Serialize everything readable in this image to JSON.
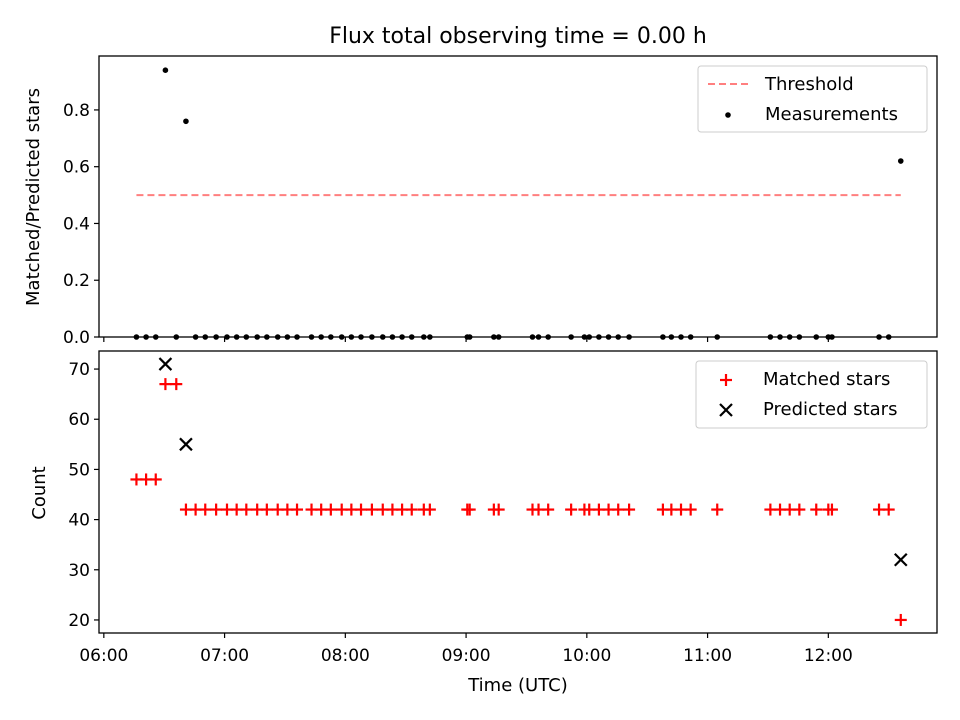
{
  "chart_data": [
    {
      "type": "scatter",
      "title": "Flux total observing time = 0.00 h",
      "xlabel": "",
      "ylabel": "Matched/Predicted stars",
      "xlim": [
        5.96,
        12.9
      ],
      "ylim": [
        0.0,
        0.99
      ],
      "yticks": [
        0.0,
        0.2,
        0.4,
        0.6,
        0.8
      ],
      "ytick_labels": [
        "0.0",
        "0.2",
        "0.4",
        "0.6",
        "0.8"
      ],
      "legend_position": "top-right",
      "threshold": {
        "name": "Threshold",
        "color": "#ff7f7f",
        "style": "dashed",
        "x": [
          6.27,
          12.6
        ],
        "y": 0.5
      },
      "measurements": {
        "name": "Measurements",
        "color": "#000000",
        "marker": "dot",
        "points": [
          [
            6.27,
            0.0
          ],
          [
            6.35,
            0.0
          ],
          [
            6.43,
            0.0
          ],
          [
            6.51,
            0.94
          ],
          [
            6.6,
            0.0
          ],
          [
            6.68,
            0.76
          ],
          [
            6.76,
            0.0
          ],
          [
            6.84,
            0.0
          ],
          [
            6.93,
            0.0
          ],
          [
            7.02,
            0.0
          ],
          [
            7.1,
            0.0
          ],
          [
            7.18,
            0.0
          ],
          [
            7.27,
            0.0
          ],
          [
            7.35,
            0.0
          ],
          [
            7.44,
            0.0
          ],
          [
            7.52,
            0.0
          ],
          [
            7.6,
            0.0
          ],
          [
            7.72,
            0.0
          ],
          [
            7.8,
            0.0
          ],
          [
            7.88,
            0.0
          ],
          [
            7.97,
            0.0
          ],
          [
            8.05,
            0.0
          ],
          [
            8.13,
            0.0
          ],
          [
            8.22,
            0.0
          ],
          [
            8.31,
            0.0
          ],
          [
            8.39,
            0.0
          ],
          [
            8.47,
            0.0
          ],
          [
            8.55,
            0.0
          ],
          [
            8.65,
            0.0
          ],
          [
            8.7,
            0.0
          ],
          [
            9.01,
            0.0
          ],
          [
            9.03,
            0.0
          ],
          [
            9.23,
            0.0
          ],
          [
            9.27,
            0.0
          ],
          [
            9.55,
            0.0
          ],
          [
            9.6,
            0.0
          ],
          [
            9.68,
            0.0
          ],
          [
            9.87,
            0.0
          ],
          [
            9.98,
            0.0
          ],
          [
            10.02,
            0.0
          ],
          [
            10.1,
            0.0
          ],
          [
            10.18,
            0.0
          ],
          [
            10.26,
            0.0
          ],
          [
            10.35,
            0.0
          ],
          [
            10.63,
            0.0
          ],
          [
            10.7,
            0.0
          ],
          [
            10.78,
            0.0
          ],
          [
            10.86,
            0.0
          ],
          [
            11.08,
            0.0
          ],
          [
            11.52,
            0.0
          ],
          [
            11.6,
            0.0
          ],
          [
            11.68,
            0.0
          ],
          [
            11.76,
            0.0
          ],
          [
            11.9,
            0.0
          ],
          [
            12.0,
            0.0
          ],
          [
            12.03,
            0.0
          ],
          [
            12.42,
            0.0
          ],
          [
            12.5,
            0.0
          ],
          [
            12.6,
            0.62
          ]
        ]
      }
    },
    {
      "type": "scatter",
      "title": "",
      "xlabel": "Time (UTC)",
      "ylabel": "Count",
      "xlim": [
        5.96,
        12.9
      ],
      "ylim": [
        17.4,
        73.6
      ],
      "yticks": [
        20,
        30,
        40,
        50,
        60,
        70
      ],
      "ytick_labels": [
        "20",
        "30",
        "40",
        "50",
        "60",
        "70"
      ],
      "xticks": [
        6,
        7,
        8,
        9,
        10,
        11,
        12
      ],
      "xtick_labels": [
        "06:00",
        "07:00",
        "08:00",
        "09:00",
        "10:00",
        "11:00",
        "12:00"
      ],
      "legend_position": "top-right",
      "matched": {
        "name": "Matched stars",
        "color": "#ff0000",
        "marker": "plus",
        "points": [
          [
            6.27,
            48
          ],
          [
            6.35,
            48
          ],
          [
            6.43,
            48
          ],
          [
            6.51,
            67
          ],
          [
            6.6,
            67
          ],
          [
            6.68,
            42
          ],
          [
            6.76,
            42
          ],
          [
            6.84,
            42
          ],
          [
            6.93,
            42
          ],
          [
            7.02,
            42
          ],
          [
            7.1,
            42
          ],
          [
            7.18,
            42
          ],
          [
            7.27,
            42
          ],
          [
            7.35,
            42
          ],
          [
            7.44,
            42
          ],
          [
            7.52,
            42
          ],
          [
            7.6,
            42
          ],
          [
            7.72,
            42
          ],
          [
            7.8,
            42
          ],
          [
            7.88,
            42
          ],
          [
            7.97,
            42
          ],
          [
            8.05,
            42
          ],
          [
            8.13,
            42
          ],
          [
            8.22,
            42
          ],
          [
            8.31,
            42
          ],
          [
            8.39,
            42
          ],
          [
            8.47,
            42
          ],
          [
            8.55,
            42
          ],
          [
            8.65,
            42
          ],
          [
            8.7,
            42
          ],
          [
            9.01,
            42
          ],
          [
            9.03,
            42
          ],
          [
            9.23,
            42
          ],
          [
            9.27,
            42
          ],
          [
            9.55,
            42
          ],
          [
            9.6,
            42
          ],
          [
            9.68,
            42
          ],
          [
            9.87,
            42
          ],
          [
            9.98,
            42
          ],
          [
            10.02,
            42
          ],
          [
            10.1,
            42
          ],
          [
            10.18,
            42
          ],
          [
            10.26,
            42
          ],
          [
            10.35,
            42
          ],
          [
            10.63,
            42
          ],
          [
            10.7,
            42
          ],
          [
            10.78,
            42
          ],
          [
            10.86,
            42
          ],
          [
            11.08,
            42
          ],
          [
            11.52,
            42
          ],
          [
            11.6,
            42
          ],
          [
            11.68,
            42
          ],
          [
            11.76,
            42
          ],
          [
            11.9,
            42
          ],
          [
            12.0,
            42
          ],
          [
            12.03,
            42
          ],
          [
            12.42,
            42
          ],
          [
            12.5,
            42
          ],
          [
            12.6,
            20
          ]
        ]
      },
      "predicted": {
        "name": "Predicted stars",
        "color": "#000000",
        "marker": "x",
        "points": [
          [
            6.51,
            71
          ],
          [
            6.68,
            55
          ],
          [
            12.6,
            32
          ]
        ]
      }
    }
  ]
}
